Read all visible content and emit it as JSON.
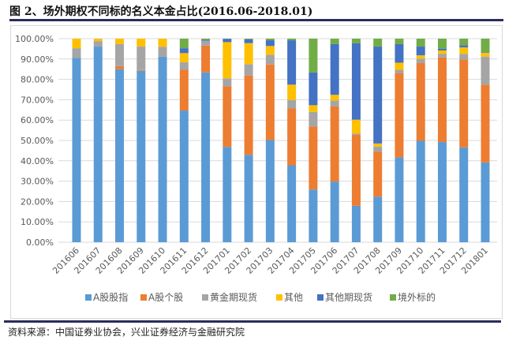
{
  "title": "图 2、场外期权不同标的名义本金占比(2016.06-2018.01)",
  "source": "资料来源：中国证券业协会，兴业证券经济与金融研究院",
  "chart_data": {
    "type": "bar",
    "stacked": true,
    "title": "图 2、场外期权不同标的名义本金占比(2016.06-2018.01)",
    "xlabel": "",
    "ylabel": "",
    "ylim": [
      0,
      100
    ],
    "yticks": [
      "0.00%",
      "10.00%",
      "20.00%",
      "30.00%",
      "40.00%",
      "50.00%",
      "60.00%",
      "70.00%",
      "80.00%",
      "90.00%",
      "100.00%"
    ],
    "grid": true,
    "legend": "bottom",
    "categories": [
      "201606",
      "201607",
      "201608",
      "201609",
      "201610",
      "201611",
      "201612",
      "201701",
      "201702",
      "201703",
      "201704",
      "201705",
      "201706",
      "201707",
      "201708",
      "201709",
      "201710",
      "201711",
      "201712",
      "201801"
    ],
    "series": [
      {
        "name": "A股股指",
        "color": "#5b9bd5",
        "values": [
          90.6,
          96.1,
          85.0,
          84.2,
          91.2,
          64.7,
          83.4,
          46.8,
          42.9,
          50.2,
          37.8,
          25.9,
          29.8,
          17.9,
          22.4,
          41.7,
          49.8,
          49.2,
          46.6,
          39.2
        ]
      },
      {
        "name": "A股个股",
        "color": "#ed7d31",
        "values": [
          0,
          0,
          1.5,
          0.4,
          0,
          20.0,
          13.2,
          29.8,
          39.0,
          37.1,
          27.9,
          31.0,
          37.0,
          34.8,
          22.0,
          41.5,
          38.2,
          41.6,
          43.1,
          38.2
        ]
      },
      {
        "name": "黄金期现货",
        "color": "#a5a5a5",
        "values": [
          4.7,
          2.7,
          10.9,
          11.5,
          4.8,
          3.7,
          2.4,
          3.9,
          5.6,
          4.8,
          4.2,
          7.1,
          2.8,
          0.7,
          2.6,
          1.5,
          2.2,
          1.8,
          2.8,
          13.8
        ]
      },
      {
        "name": "其他",
        "color": "#ffc000",
        "values": [
          4.7,
          1.2,
          2.6,
          3.9,
          4.0,
          4.5,
          0,
          17.8,
          10.3,
          4.3,
          7.5,
          3.3,
          2.8,
          6.8,
          1.5,
          3.5,
          1.6,
          1.6,
          3.2,
          1.9
        ]
      },
      {
        "name": "其他期现货",
        "color": "#4472c4",
        "values": [
          0,
          0,
          0,
          0,
          0,
          2.4,
          0.5,
          1.5,
          1.8,
          2.8,
          21.8,
          16.1,
          25.0,
          37.5,
          47.6,
          9.1,
          4.3,
          0.9,
          1.1,
          0.3
        ]
      },
      {
        "name": "境外标的",
        "color": "#70ad47",
        "values": [
          0,
          0,
          0,
          0,
          0,
          4.7,
          0.5,
          0.2,
          0.4,
          0.8,
          0.8,
          16.6,
          2.6,
          2.3,
          3.9,
          2.7,
          3.9,
          4.9,
          3.2,
          6.6
        ]
      }
    ]
  }
}
